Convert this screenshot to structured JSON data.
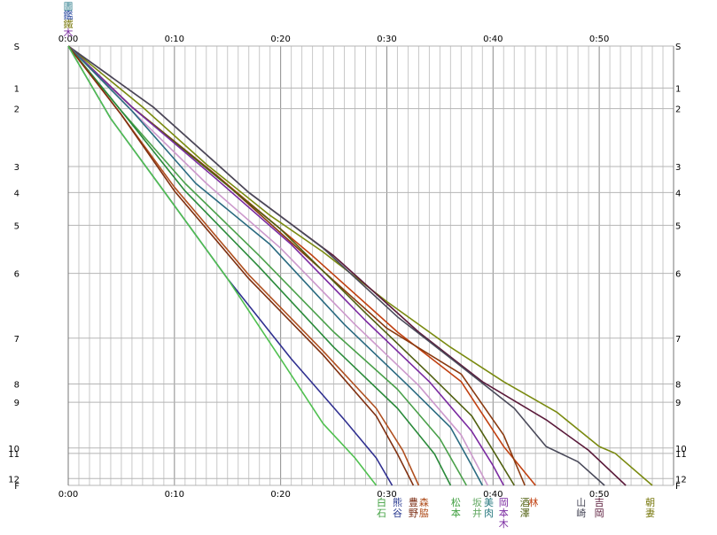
{
  "chart_data": {
    "type": "line",
    "x_unit": "minutes after 0:00",
    "x_tick_labels": [
      "0:00",
      "0:10",
      "0:20",
      "0:30",
      "0:40",
      "0:50"
    ],
    "x_tick_values": [
      0,
      10,
      20,
      30,
      40,
      50
    ],
    "xlim": [
      0,
      57
    ],
    "y_labels_left": [
      "S",
      "1",
      "2",
      "3",
      "4",
      "5",
      "6",
      "7",
      "8",
      "9",
      "10",
      "11",
      "12",
      "F"
    ],
    "y_labels_right": [
      "S",
      "1",
      "2",
      "3",
      "4",
      "5",
      "6",
      "7",
      "8",
      "9",
      "10",
      "11",
      "12",
      "F"
    ],
    "y_values": [
      0,
      0.55,
      0.82,
      1.58,
      1.92,
      2.35,
      2.98,
      3.83,
      4.43,
      4.67,
      5.27,
      5.34,
      5.67,
      5.76
    ],
    "top_labels": [
      {
        "text": "圕",
        "color": "#2e7d8c"
      },
      {
        "text": "鑑",
        "color": "#2b4aa0"
      },
      {
        "text": "鐵",
        "color": "#7a7a10"
      },
      {
        "text": "木",
        "color": "#7b2fa0"
      }
    ],
    "series": [
      {
        "color": "#7a8a10",
        "x": [
          0,
          7,
          13,
          19,
          24,
          30,
          36,
          41,
          46,
          50,
          51.5,
          55
        ],
        "y": [
          0,
          0.8,
          1.55,
          2.22,
          2.7,
          3.35,
          3.95,
          4.4,
          4.8,
          5.25,
          5.34,
          5.76
        ]
      },
      {
        "color": "#5a1a3a",
        "x": [
          0,
          8,
          17,
          25,
          33,
          39,
          45,
          49,
          52.5
        ],
        "y": [
          0,
          0.8,
          1.92,
          2.75,
          3.75,
          4.4,
          4.9,
          5.3,
          5.76
        ]
      },
      {
        "color": "#4a4a5a",
        "x": [
          0,
          8,
          17,
          24,
          31,
          37,
          42,
          45,
          48,
          50.5
        ],
        "y": [
          0,
          0.8,
          1.92,
          2.65,
          3.55,
          4.2,
          4.75,
          5.25,
          5.45,
          5.76
        ]
      },
      {
        "color": "#c04010",
        "x": [
          0,
          6,
          14,
          23,
          31,
          37,
          41,
          44
        ],
        "y": [
          0,
          0.8,
          1.7,
          2.75,
          3.75,
          4.4,
          5.25,
          5.76
        ]
      },
      {
        "color": "#8a3a10",
        "x": [
          0,
          6,
          14,
          22,
          30,
          37,
          41,
          43
        ],
        "y": [
          0,
          0.8,
          1.7,
          2.7,
          3.7,
          4.3,
          5.1,
          5.76
        ]
      },
      {
        "color": "#506010",
        "x": [
          0,
          6,
          13,
          20,
          28,
          34,
          38,
          40,
          42
        ],
        "y": [
          0,
          0.8,
          1.6,
          2.4,
          3.5,
          4.3,
          4.85,
          5.3,
          5.76
        ]
      },
      {
        "color": "#7a2aa0",
        "x": [
          0,
          6,
          14,
          21,
          28,
          34,
          38,
          40,
          41
        ],
        "y": [
          0,
          0.8,
          1.75,
          2.6,
          3.6,
          4.4,
          5.05,
          5.5,
          5.76
        ]
      },
      {
        "color": "#cc99cc",
        "x": [
          0,
          6,
          13,
          20,
          27,
          33,
          37,
          39.5
        ],
        "y": [
          0,
          0.85,
          1.8,
          2.65,
          3.65,
          4.45,
          5.1,
          5.76
        ]
      },
      {
        "color": "#2a6a80",
        "x": [
          0,
          6,
          12,
          19,
          26,
          32,
          36,
          38,
          39
        ],
        "y": [
          0,
          0.85,
          1.8,
          2.6,
          3.65,
          4.45,
          5.0,
          5.5,
          5.76
        ]
      },
      {
        "color": "#4aa04a",
        "x": [
          0,
          5,
          11,
          18,
          25,
          31,
          35,
          37.5
        ],
        "y": [
          0,
          0.85,
          1.8,
          2.75,
          3.75,
          4.5,
          5.15,
          5.76
        ]
      },
      {
        "color": "#2a8a3a",
        "x": [
          0,
          5,
          11,
          18,
          25,
          31,
          34.5,
          36
        ],
        "y": [
          0,
          0.85,
          1.9,
          2.9,
          3.95,
          4.75,
          5.35,
          5.76
        ]
      },
      {
        "color": "#b05020",
        "x": [
          0,
          5,
          10,
          17,
          24,
          29,
          31.5,
          33
        ],
        "y": [
          0,
          0.9,
          1.85,
          3.0,
          4.0,
          4.75,
          5.3,
          5.76
        ]
      },
      {
        "color": "#803010",
        "x": [
          0,
          5,
          10,
          17,
          24,
          29,
          31,
          32.5
        ],
        "y": [
          0,
          0.9,
          1.9,
          3.05,
          4.05,
          4.85,
          5.35,
          5.76
        ]
      },
      {
        "color": "#303090",
        "x": [
          0,
          4,
          9,
          15,
          21,
          26,
          29,
          30.5
        ],
        "y": [
          0,
          0.95,
          1.9,
          3.05,
          4.1,
          4.9,
          5.4,
          5.76
        ]
      },
      {
        "color": "#50c050",
        "x": [
          0,
          4,
          9,
          15,
          20,
          24,
          27,
          29
        ],
        "y": [
          0,
          0.95,
          1.9,
          3.05,
          4.1,
          4.95,
          5.4,
          5.76
        ]
      }
    ]
  },
  "bottom_labels": [
    {
      "text": "白石",
      "color": "#40a040",
      "x": 29.5
    },
    {
      "text": "熊谷",
      "color": "#2a3a90",
      "x": 31
    },
    {
      "text": "豊野",
      "color": "#7a2a10",
      "x": 32.5
    },
    {
      "text": "森脇",
      "color": "#b05020",
      "x": 33.5
    },
    {
      "text": "松本",
      "color": "#40a040",
      "x": 36.5
    },
    {
      "text": "坂井",
      "color": "#66aa66",
      "x": 38.5
    },
    {
      "text": "美肉",
      "color": "#2a7a80",
      "x": 39.6
    },
    {
      "text": "岡本木",
      "color": "#7a2aa0",
      "x": 41
    },
    {
      "text": "酒澤",
      "color": "#506010",
      "x": 43
    },
    {
      "text": "林",
      "color": "#c04010",
      "x": 43.8
    },
    {
      "text": "山崎",
      "color": "#4a4a5a",
      "x": 48.3
    },
    {
      "text": "吉岡",
      "color": "#5a1a3a",
      "x": 50
    },
    {
      "text": "朝妻",
      "color": "#7a7a10",
      "x": 54.8
    }
  ]
}
